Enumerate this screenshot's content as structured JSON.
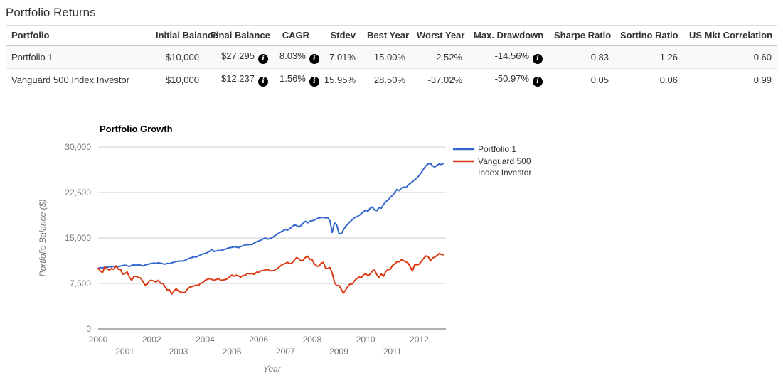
{
  "page": {
    "title": "Portfolio Returns"
  },
  "colors": {
    "series_blue": "#3366cc",
    "series_red": "#dc3912",
    "grid": "#cccccc",
    "axis_line": "#666666",
    "axis_text": "#757575",
    "table_text": "#333333"
  },
  "icons": {
    "info_glyph": "i"
  },
  "table": {
    "columns": [
      {
        "label": "Portfolio",
        "align": "left"
      },
      {
        "label": "Initial Balance",
        "align": "right"
      },
      {
        "label": "Final Balance",
        "align": "right"
      },
      {
        "label": "CAGR",
        "align": "right"
      },
      {
        "label": "Stdev",
        "align": "right"
      },
      {
        "label": "Best Year",
        "align": "right"
      },
      {
        "label": "Worst Year",
        "align": "right"
      },
      {
        "label": "Max. Drawdown",
        "align": "right"
      },
      {
        "label": "Sharpe Ratio",
        "align": "right"
      },
      {
        "label": "Sortino Ratio",
        "align": "right"
      },
      {
        "label": "US Mkt Correlation",
        "align": "right"
      }
    ],
    "rows": [
      {
        "cells": [
          {
            "text": "Portfolio 1"
          },
          {
            "text": "$10,000"
          },
          {
            "text": "$27,295",
            "info": true
          },
          {
            "text": "8.03%",
            "info": true
          },
          {
            "text": "7.01%"
          },
          {
            "text": "15.00%"
          },
          {
            "text": "-2.52%"
          },
          {
            "text": "-14.56%",
            "info": true
          },
          {
            "text": "0.83"
          },
          {
            "text": "1.26"
          },
          {
            "text": "0.60"
          }
        ]
      },
      {
        "cells": [
          {
            "text": "Vanguard 500 Index Investor"
          },
          {
            "text": "$10,000"
          },
          {
            "text": "$12,237",
            "info": true
          },
          {
            "text": "1.56%",
            "info": true
          },
          {
            "text": "15.95%"
          },
          {
            "text": "28.50%"
          },
          {
            "text": "-37.02%"
          },
          {
            "text": "-50.97%",
            "info": true
          },
          {
            "text": "0.05"
          },
          {
            "text": "0.06"
          },
          {
            "text": "0.99"
          }
        ]
      }
    ]
  },
  "chart_data": {
    "type": "line",
    "title": "Portfolio Growth",
    "xlabel": "Year",
    "ylabel": "Portfolio Balance ($)",
    "xlim": [
      2000,
      2013
    ],
    "ylim": [
      0,
      30000
    ],
    "y_ticks": [
      0,
      7500,
      15000,
      22500,
      30000
    ],
    "x_ticks": [
      2000,
      2001,
      2002,
      2003,
      2004,
      2005,
      2006,
      2007,
      2008,
      2009,
      2010,
      2011,
      2012
    ],
    "x_tick_stagger": true,
    "grid": true,
    "legend_position": "right",
    "x_start_year": 2000,
    "points_per_year": 12,
    "series": [
      {
        "name": "Portfolio 1",
        "color": "#3366cc",
        "values": [
          10000,
          10120,
          10060,
          10200,
          10150,
          10280,
          10220,
          10350,
          10280,
          10250,
          10380,
          10450,
          10520,
          10420,
          10300,
          10480,
          10560,
          10500,
          10580,
          10520,
          10380,
          10520,
          10650,
          10720,
          10800,
          10870,
          10780,
          10900,
          10850,
          10750,
          10680,
          10820,
          10760,
          10900,
          11020,
          11120,
          11180,
          11220,
          11160,
          11320,
          11500,
          11650,
          11780,
          11900,
          11850,
          12050,
          12200,
          12380,
          12450,
          12600,
          12800,
          13150,
          12750,
          12850,
          12950,
          12900,
          13050,
          13150,
          13300,
          13400,
          13450,
          13550,
          13500,
          13400,
          13600,
          13700,
          13900,
          13850,
          13950,
          13900,
          14150,
          14350,
          14500,
          14650,
          14850,
          15000,
          14800,
          14900,
          15050,
          15300,
          15550,
          15800,
          16000,
          16200,
          16400,
          16300,
          16550,
          16850,
          17150,
          17050,
          16800,
          17050,
          17450,
          17750,
          17500,
          17750,
          17850,
          17950,
          18150,
          18300,
          18350,
          18400,
          18300,
          18350,
          17800,
          15900,
          17500,
          17170,
          15800,
          15640,
          16300,
          16900,
          17300,
          17700,
          18000,
          18350,
          18500,
          18700,
          19000,
          19300,
          19600,
          19400,
          19900,
          20100,
          19600,
          19500,
          20000,
          19900,
          20500,
          21000,
          21200,
          21700,
          22000,
          22500,
          23000,
          22800,
          23200,
          23400,
          23300,
          23700,
          24000,
          24300,
          24600,
          24900,
          25300,
          25800,
          26400,
          26900,
          27200,
          27300,
          26900,
          26700,
          27000,
          27200,
          27100,
          27295
        ]
      },
      {
        "name": "Vanguard 500 Index Investor",
        "color": "#dc3912",
        "values": [
          10000,
          9500,
          9320,
          10230,
          9920,
          9720,
          9960,
          9800,
          10410,
          9860,
          9820,
          9040,
          9090,
          9410,
          8550,
          8010,
          8630,
          8690,
          8480,
          8400,
          7870,
          7230,
          7370,
          7940,
          8010,
          7890,
          7740,
          8030,
          7540,
          7490,
          6950,
          6410,
          6450,
          5750,
          6260,
          6630,
          6240,
          6080,
          5980,
          6040,
          6540,
          6880,
          6970,
          7100,
          7230,
          7160,
          7560,
          7630,
          8030,
          8180,
          8290,
          8160,
          8040,
          8150,
          8300,
          8030,
          8060,
          8150,
          8270,
          8610,
          8900,
          8690,
          8870,
          8710,
          8550,
          8820,
          8830,
          9160,
          9080,
          9150,
          9000,
          9340,
          9340,
          9590,
          9610,
          9730,
          9860,
          9580,
          9590,
          9650,
          9880,
          10130,
          10470,
          10660,
          10810,
          10980,
          10760,
          10880,
          11360,
          11760,
          11570,
          11210,
          11370,
          11800,
          11990,
          11490,
          11410,
          10720,
          10370,
          10330,
          10830,
          10970,
          10050,
          9960,
          10110,
          9210,
          7660,
          7110,
          7190,
          6580,
          5880,
          6400,
          7010,
          7400,
          7410,
          7970,
          8260,
          8570,
          8410,
          8920,
          9090,
          8760,
          9030,
          9580,
          9730,
          8950,
          8480,
          9080,
          8670,
          9440,
          9800,
          9800,
          10460,
          10700,
          11070,
          11080,
          11400,
          11270,
          11090,
          10860,
          10270,
          9550,
          10590,
          10570,
          10680,
          11160,
          11640,
          12020,
          11950,
          11230,
          11690,
          11850,
          12120,
          12440,
          12280,
          12237
        ]
      }
    ]
  }
}
